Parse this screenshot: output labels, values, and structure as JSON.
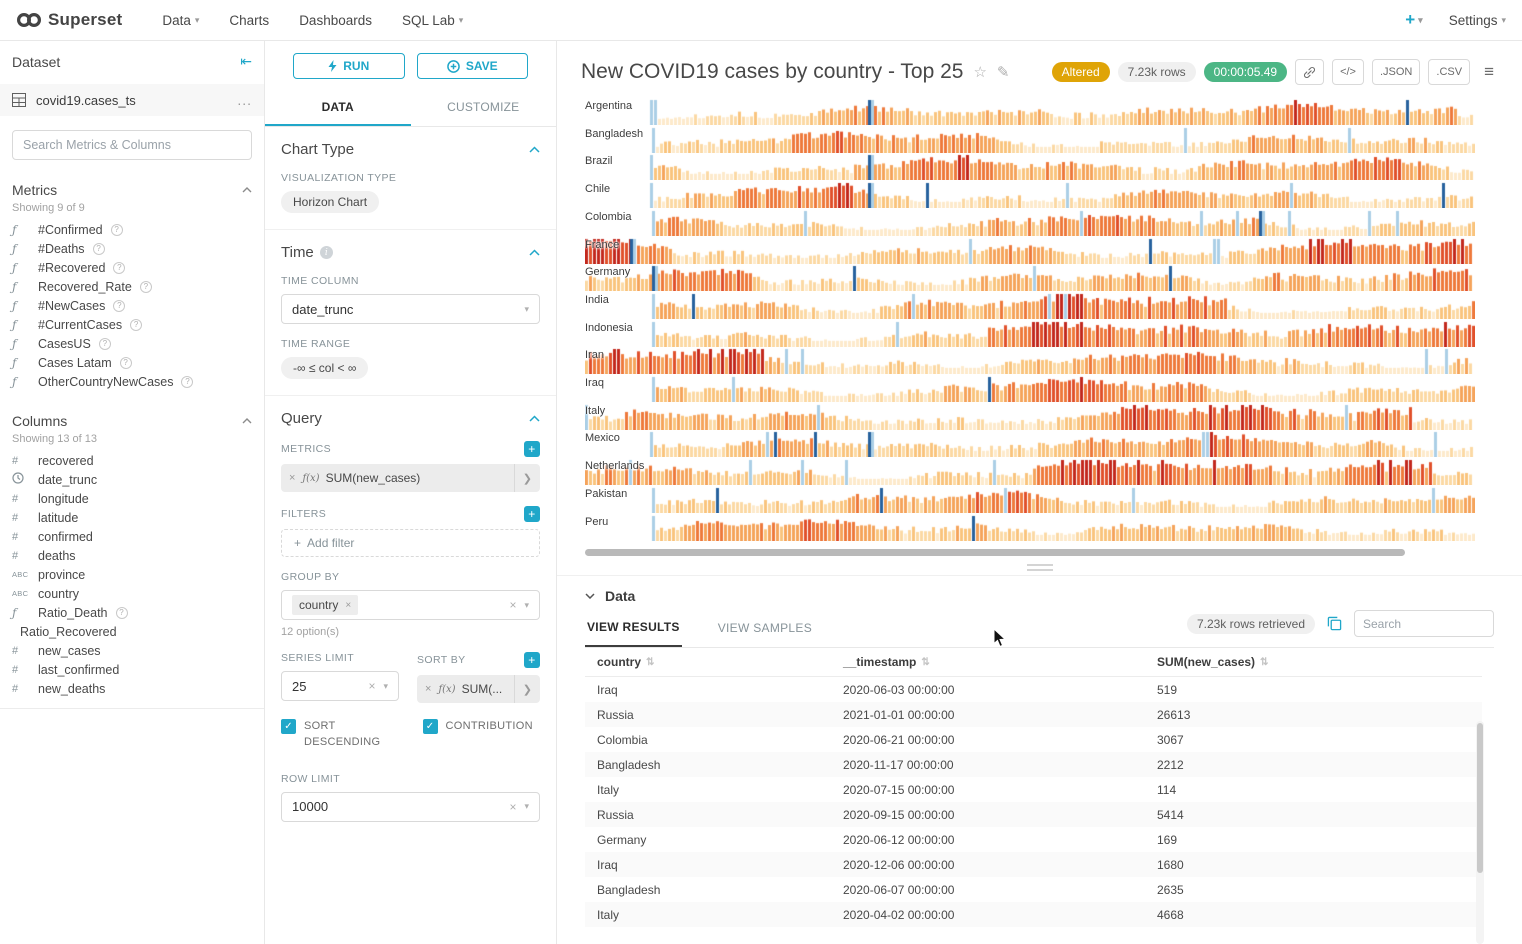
{
  "navbar": {
    "brand": "Superset",
    "menu": [
      {
        "label": "Data",
        "caret": true
      },
      {
        "label": "Charts",
        "caret": false
      },
      {
        "label": "Dashboards",
        "caret": false
      },
      {
        "label": "SQL Lab",
        "caret": true
      }
    ],
    "plus": "+",
    "settings": "Settings"
  },
  "dataset_panel": {
    "title": "Dataset",
    "name": "covid19.cases_ts",
    "more": "...",
    "search_placeholder": "Search Metrics & Columns",
    "metrics": {
      "title": "Metrics",
      "showing": "Showing 9 of 9",
      "items": [
        "#Confirmed",
        "#Deaths",
        "#Recovered",
        "Recovered_Rate",
        "#NewCases",
        "#CurrentCases",
        "CasesUS",
        "Cases Latam",
        "OtherCountryNewCases"
      ]
    },
    "columns": {
      "title": "Columns",
      "showing": "Showing 13 of 13",
      "items": [
        {
          "name": "recovered",
          "type": "num"
        },
        {
          "name": "date_trunc",
          "type": "time"
        },
        {
          "name": "longitude",
          "type": "num"
        },
        {
          "name": "latitude",
          "type": "num"
        },
        {
          "name": "confirmed",
          "type": "num"
        },
        {
          "name": "deaths",
          "type": "num"
        },
        {
          "name": "province",
          "type": "text"
        },
        {
          "name": "country",
          "type": "text"
        },
        {
          "name": "Ratio_Death",
          "type": "func",
          "help": true
        },
        {
          "name": "Ratio_Recovered",
          "type": "none"
        },
        {
          "name": "new_cases",
          "type": "num"
        },
        {
          "name": "last_confirmed",
          "type": "num"
        },
        {
          "name": "new_deaths",
          "type": "num"
        }
      ]
    }
  },
  "controls": {
    "run": "RUN",
    "save": "SAVE",
    "tabs": [
      "DATA",
      "CUSTOMIZE"
    ],
    "chart_type": {
      "header": "Chart Type",
      "viz_label": "VISUALIZATION TYPE",
      "viz_value": "Horizon Chart"
    },
    "time": {
      "header": "Time",
      "column_label": "TIME COLUMN",
      "column_value": "date_trunc",
      "range_label": "TIME RANGE",
      "range_value": "-∞ ≤ col < ∞"
    },
    "query": {
      "header": "Query",
      "metrics_label": "METRICS",
      "fx": "ƒ(x)",
      "metric_chip": "SUM(new_cases)",
      "filters_label": "FILTERS",
      "add_filter": "Add filter",
      "group_by_label": "GROUP BY",
      "group_by_chip": "country",
      "options_hint": "12 option(s)",
      "series_limit_label": "SERIES LIMIT",
      "series_limit_value": "25",
      "sort_by_label": "SORT BY",
      "sort_by_chip": "SUM(...",
      "sort_descending": "SORT DESCENDING",
      "contribution": "CONTRIBUTION",
      "row_limit_label": "ROW LIMIT",
      "row_limit_value": "10000"
    }
  },
  "chart_header": {
    "title": "New COVID19 cases by country - Top 25",
    "altered": "Altered",
    "rows": "7.23k rows",
    "timer": "00:00:05.49",
    "code": "</>",
    "json": ".JSON",
    "csv": ".CSV"
  },
  "chart_data": {
    "type": "horizon",
    "metric": "SUM(new_cases)",
    "note": "horizon chart of daily new COVID19 cases per country, top 25 by total; warm bands = positive intensity, blue = negative/corrections",
    "rows": [
      {
        "label": "Argentina",
        "start": 0.073,
        "hot": [
          [
            0.5,
            0.98,
            0.2
          ]
        ],
        "navy": [
          0.318
        ]
      },
      {
        "label": "Bangladesh",
        "start": 0.075,
        "hot": [
          [
            0.15,
            0.45,
            0.2
          ]
        ],
        "navy": []
      },
      {
        "label": "Brazil",
        "start": 0.073,
        "hot": [
          [
            0.3,
            0.95,
            0.22
          ]
        ],
        "navy": [
          0.318
        ]
      },
      {
        "label": "Chile",
        "start": 0.073,
        "hot": [
          [
            0.17,
            0.3,
            0.35
          ]
        ],
        "navy": [
          0.318
        ]
      },
      {
        "label": "Colombia",
        "start": 0.075,
        "hot": [
          [
            0.45,
            0.8,
            0.22
          ]
        ],
        "navy": [
          0.757
        ]
      },
      {
        "label": "France",
        "start": 0.0,
        "hot": [
          [
            0.0,
            0.1,
            0.45
          ],
          [
            0.72,
            1.0,
            0.35
          ]
        ],
        "navy": [
          0.05
        ]
      },
      {
        "label": "Germany",
        "start": 0.0,
        "hot": [
          [
            0.05,
            0.2,
            0.2
          ],
          [
            0.75,
            1.0,
            0.3
          ]
        ],
        "navy": [
          0.075
        ]
      },
      {
        "label": "India",
        "start": 0.075,
        "hot": [
          [
            0.33,
            0.72,
            0.35
          ]
        ],
        "navy": []
      },
      {
        "label": "Indonesia",
        "start": 0.075,
        "hot": [
          [
            0.45,
            1.0,
            0.4
          ]
        ],
        "navy": []
      },
      {
        "label": "Iran",
        "start": 0.0,
        "hot": [
          [
            0.0,
            0.2,
            0.45
          ],
          [
            0.55,
            0.8,
            0.25
          ]
        ],
        "navy": []
      },
      {
        "label": "Iraq",
        "start": 0.075,
        "hot": [
          [
            0.4,
            0.7,
            0.3
          ]
        ],
        "navy": []
      },
      {
        "label": "Italy",
        "start": 0.0,
        "hot": [
          [
            0.6,
            0.93,
            0.5
          ],
          [
            0.0,
            0.08,
            0.3
          ]
        ],
        "navy": []
      },
      {
        "label": "Mexico",
        "start": 0.073,
        "hot": [
          [
            0.45,
            0.9,
            0.2
          ]
        ],
        "navy": [
          0.318
        ]
      },
      {
        "label": "Netherlands",
        "start": 0.0,
        "hot": [
          [
            0.5,
            0.95,
            0.45
          ],
          [
            0.0,
            0.06,
            0.25
          ]
        ],
        "navy": []
      },
      {
        "label": "Pakistan",
        "start": 0.075,
        "hot": [
          [
            0.2,
            0.5,
            0.22
          ]
        ],
        "navy": []
      },
      {
        "label": "Peru",
        "start": 0.075,
        "hot": [
          [
            0.12,
            0.5,
            0.22
          ]
        ],
        "navy": []
      }
    ],
    "palette": [
      "#fdeacb",
      "#fbd9a4",
      "#f9c47e",
      "#f5a45c",
      "#ee7a3c",
      "#e1512b"
    ],
    "red": "#c3291e",
    "light_blue": "#abcfe6",
    "navy": "#28629e"
  },
  "results": {
    "header": "Data",
    "tabs": [
      "VIEW RESULTS",
      "VIEW SAMPLES"
    ],
    "rows_retrieved": "7.23k rows retrieved",
    "search_placeholder": "Search",
    "table": {
      "headers": [
        "country",
        "__timestamp",
        "SUM(new_cases)"
      ],
      "rows": [
        [
          "Iraq",
          "2020-06-03 00:00:00",
          "519"
        ],
        [
          "Russia",
          "2021-01-01 00:00:00",
          "26613"
        ],
        [
          "Colombia",
          "2020-06-21 00:00:00",
          "3067"
        ],
        [
          "Bangladesh",
          "2020-11-17 00:00:00",
          "2212"
        ],
        [
          "Italy",
          "2020-07-15 00:00:00",
          "114"
        ],
        [
          "Russia",
          "2020-09-15 00:00:00",
          "5414"
        ],
        [
          "Germany",
          "2020-06-12 00:00:00",
          "169"
        ],
        [
          "Iraq",
          "2020-12-06 00:00:00",
          "1680"
        ],
        [
          "Bangladesh",
          "2020-06-07 00:00:00",
          "2635"
        ],
        [
          "Italy",
          "2020-04-02 00:00:00",
          "4668"
        ]
      ]
    }
  },
  "colors": {
    "accent": "#20a7c9",
    "altered_badge": "#dfa407",
    "timer_badge": "#4cb685"
  }
}
